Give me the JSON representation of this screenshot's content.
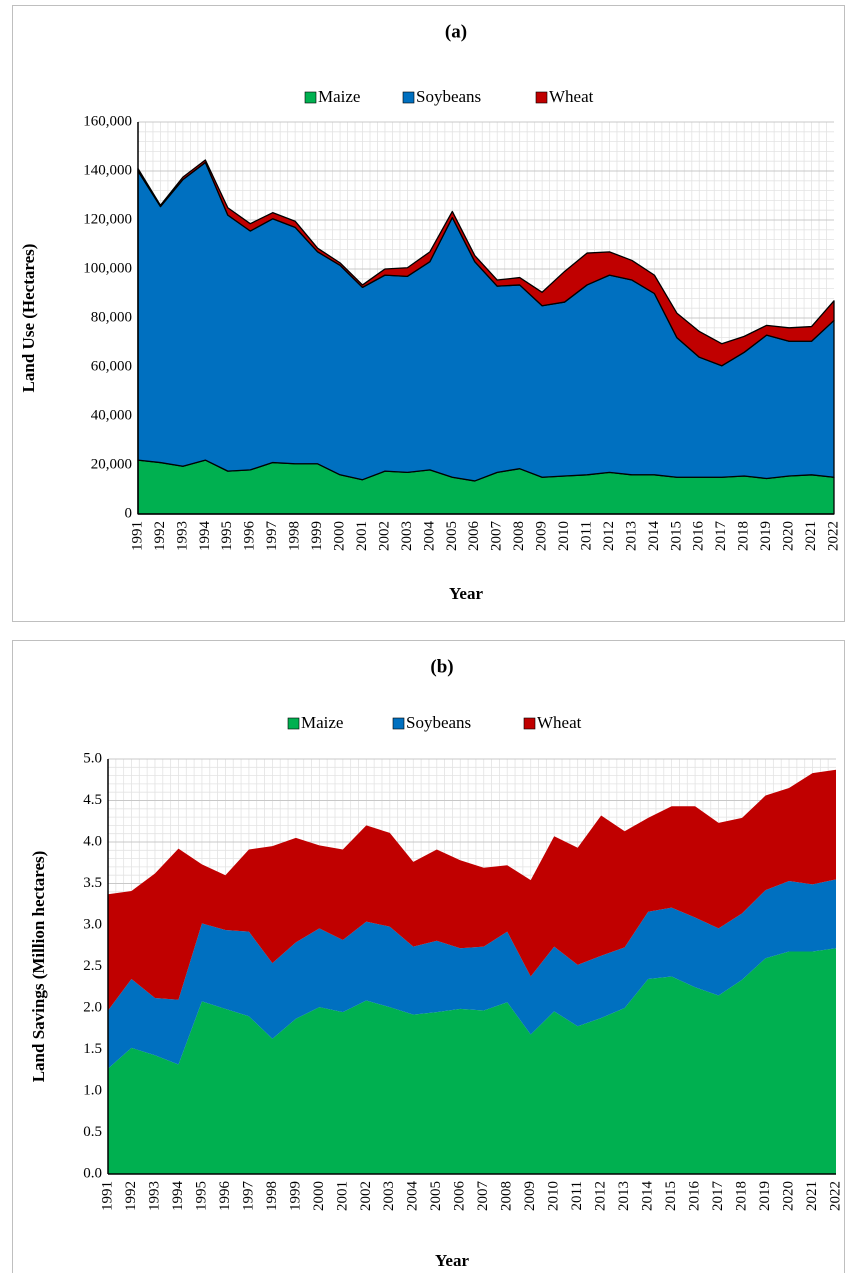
{
  "chart_data": [
    {
      "type": "area",
      "title": "(a)",
      "x_label": "Year",
      "y_label": "Land Use (Hectares)",
      "grid": true,
      "legend": "top",
      "categories": [
        "1991",
        "1992",
        "1993",
        "1994",
        "1995",
        "1996",
        "1997",
        "1998",
        "1999",
        "2000",
        "2001",
        "2002",
        "2003",
        "2004",
        "2005",
        "2006",
        "2007",
        "2008",
        "2009",
        "2010",
        "2011",
        "2012",
        "2013",
        "2014",
        "2015",
        "2016",
        "2017",
        "2018",
        "2019",
        "2020",
        "2021",
        "2022"
      ],
      "series": [
        {
          "name": "Maize",
          "color": "#00b050",
          "values": [
            22000,
            21000,
            19500,
            22000,
            17500,
            18000,
            21000,
            20500,
            20500,
            16000,
            14000,
            17500,
            17000,
            18000,
            15000,
            13500,
            17000,
            18500,
            15000,
            15500,
            16000,
            17000,
            16000,
            16000,
            15000,
            15000,
            15000,
            15500,
            14500,
            15500,
            16000,
            15000
          ]
        },
        {
          "name": "Soybeans",
          "color": "#0070c0",
          "values": [
            118000,
            104500,
            117000,
            121500,
            104500,
            97500,
            99500,
            96500,
            86500,
            85500,
            78500,
            80000,
            80000,
            85000,
            106000,
            89500,
            76000,
            75000,
            70000,
            71000,
            77500,
            80500,
            79500,
            74000,
            57000,
            49000,
            45500,
            50500,
            58500,
            55000,
            54500,
            64000
          ]
        },
        {
          "name": "Wheat",
          "color": "#c00000",
          "values": [
            1000,
            500,
            1000,
            1000,
            3000,
            3000,
            2500,
            2500,
            1500,
            1000,
            1000,
            2500,
            3500,
            4000,
            2500,
            2500,
            2500,
            3000,
            5500,
            12500,
            13000,
            9500,
            8000,
            7500,
            10000,
            10500,
            9000,
            6500,
            4000,
            5500,
            6000,
            8000
          ]
        }
      ],
      "ylim": [
        0,
        160000
      ],
      "yticks": [
        0,
        {
          "value": 20000,
          "label": "20,000"
        },
        {
          "value": 40000,
          "label": "40,000"
        },
        {
          "value": 60000,
          "label": "60,000"
        },
        {
          "value": 80000,
          "label": "80,000"
        },
        {
          "value": 100000,
          "label": "100,000"
        },
        {
          "value": 120000,
          "label": "120,000"
        },
        {
          "value": 140000,
          "label": "140,000"
        },
        {
          "value": 160000,
          "label": "160,000"
        }
      ]
    },
    {
      "type": "area",
      "title": "(b)",
      "x_label": "Year",
      "y_label": "Land Savings (Million  hectares)",
      "grid": true,
      "legend": "top",
      "categories": [
        "1991",
        "1992",
        "1993",
        "1994",
        "1995",
        "1996",
        "1997",
        "1998",
        "1999",
        "2000",
        "2001",
        "2002",
        "2003",
        "2004",
        "2005",
        "2006",
        "2007",
        "2008",
        "2009",
        "2010",
        "2011",
        "2012",
        "2013",
        "2014",
        "2015",
        "2016",
        "2017",
        "2018",
        "2019",
        "2020",
        "2021",
        "2022"
      ],
      "series": [
        {
          "name": "Maize",
          "color": "#00b050",
          "values": [
            1.27,
            1.52,
            1.43,
            1.32,
            2.08,
            1.99,
            1.9,
            1.63,
            1.87,
            2.01,
            1.95,
            2.09,
            2.01,
            1.92,
            1.95,
            1.99,
            1.97,
            2.07,
            1.68,
            1.96,
            1.78,
            1.88,
            2.0,
            2.35,
            2.38,
            2.25,
            2.15,
            2.34,
            2.6,
            2.68,
            2.68,
            2.72
          ]
        },
        {
          "name": "Soybeans",
          "color": "#0070c0",
          "values": [
            0.7,
            0.83,
            0.69,
            0.78,
            0.94,
            0.95,
            1.02,
            0.91,
            0.92,
            0.95,
            0.87,
            0.95,
            0.97,
            0.82,
            0.86,
            0.73,
            0.77,
            0.85,
            0.7,
            0.78,
            0.74,
            0.75,
            0.73,
            0.81,
            0.83,
            0.84,
            0.81,
            0.8,
            0.82,
            0.85,
            0.81,
            0.83
          ]
        },
        {
          "name": "Wheat",
          "color": "#c00000",
          "values": [
            1.4,
            1.06,
            1.5,
            1.82,
            0.71,
            0.66,
            0.99,
            1.41,
            1.26,
            1.0,
            1.09,
            1.16,
            1.13,
            1.02,
            1.1,
            1.06,
            0.95,
            0.8,
            1.16,
            1.33,
            1.41,
            1.69,
            1.4,
            1.13,
            1.22,
            1.34,
            1.27,
            1.15,
            1.14,
            1.12,
            1.34,
            1.32
          ]
        }
      ],
      "ylim": [
        0,
        5
      ],
      "yticks": [
        {
          "value": 0,
          "label": "0.0"
        },
        0.5,
        {
          "value": 1,
          "label": "1.0"
        },
        1.5,
        {
          "value": 2,
          "label": "2.0"
        },
        2.5,
        {
          "value": 3,
          "label": "3.0"
        },
        3.5,
        {
          "value": 4,
          "label": "4.0"
        },
        4.5,
        {
          "value": 5,
          "label": "5.0"
        }
      ]
    }
  ]
}
